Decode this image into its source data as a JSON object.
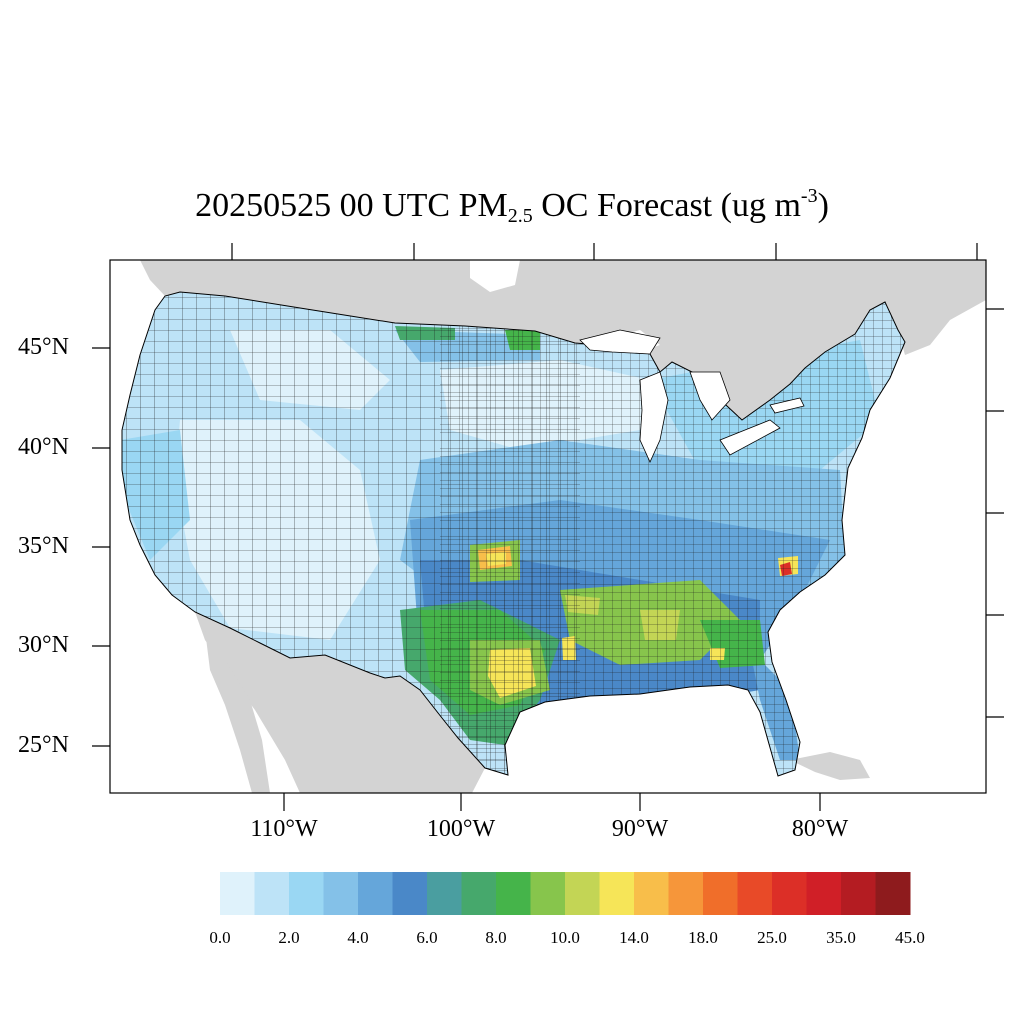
{
  "title": {
    "prefix": "20250525 00 UTC PM",
    "subscript": "2.5",
    "middle": " OC Forecast (ug m",
    "superscript": "-3",
    "suffix": ")"
  },
  "lat_labels": [
    "45°N",
    "40°N",
    "35°N",
    "30°N",
    "25°N"
  ],
  "lon_labels": [
    "110°W",
    "100°W",
    "90°W",
    "80°W"
  ],
  "colorbar": {
    "colors": [
      "#dff2fb",
      "#bde3f7",
      "#9ad7f3",
      "#84c1e8",
      "#65a6da",
      "#4a88c8",
      "#4a9ea0",
      "#46a86c",
      "#45b44a",
      "#87c54c",
      "#c3d555",
      "#f6e558",
      "#f8be4a",
      "#f6963a",
      "#f06e2a",
      "#e84a28",
      "#dc2f27",
      "#d01f27",
      "#b41c22",
      "#8e1b1d"
    ],
    "labels": [
      "0.0",
      "2.0",
      "4.0",
      "6.0",
      "8.0",
      "10.0",
      "14.0",
      "18.0",
      "25.0",
      "35.0",
      "45.0"
    ]
  },
  "map_colors": {
    "land_outside": "#d3d3d3",
    "water": "#ffffff"
  }
}
